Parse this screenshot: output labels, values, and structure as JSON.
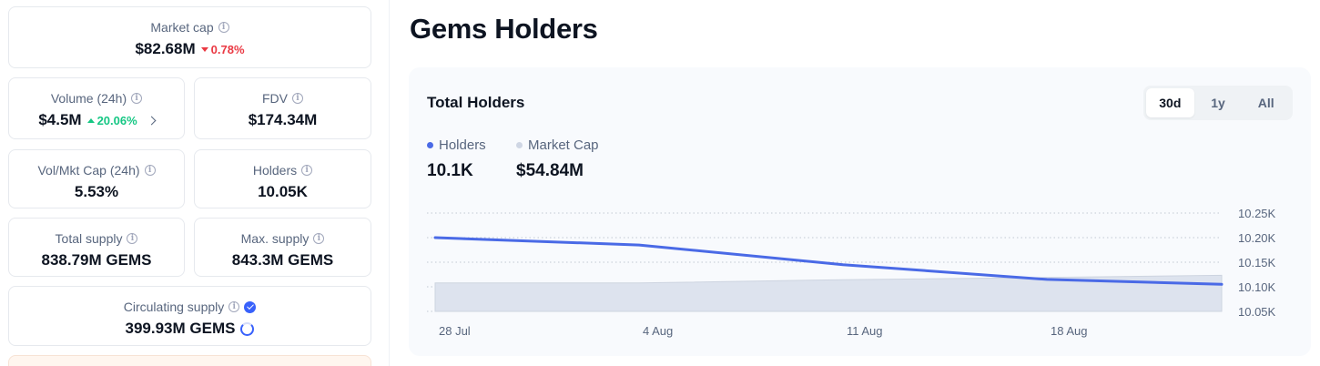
{
  "stats": {
    "market_cap": {
      "label": "Market cap",
      "value": "$82.68M",
      "change": "0.78%",
      "direction": "down"
    },
    "volume": {
      "label": "Volume (24h)",
      "value": "$4.5M",
      "change": "20.06%",
      "direction": "up"
    },
    "fdv": {
      "label": "FDV",
      "value": "$174.34M"
    },
    "vol_mkt_cap": {
      "label": "Vol/Mkt Cap (24h)",
      "value": "5.53%"
    },
    "holders": {
      "label": "Holders",
      "value": "10.05K"
    },
    "total_supply": {
      "label": "Total supply",
      "value": "838.79M GEMS"
    },
    "max_supply": {
      "label": "Max. supply",
      "value": "843.3M GEMS"
    },
    "circulating_supply": {
      "label": "Circulating supply",
      "value": "399.93M GEMS"
    }
  },
  "section": {
    "title": "Gems Holders"
  },
  "panel": {
    "title": "Total Holders",
    "tabs": [
      "30d",
      "1y",
      "All"
    ],
    "active_tab": "30d",
    "legend": [
      {
        "name": "Holders",
        "value": "10.1K",
        "color": "#4a6ae6"
      },
      {
        "name": "Market Cap",
        "value": "$54.84M",
        "color": "#cfd6e4"
      }
    ]
  },
  "colors": {
    "accent": "#3861fb",
    "down": "#ea3943",
    "up": "#16c784",
    "holders_line": "#4a6ae6",
    "market_cap_area": "#dde3ee"
  },
  "icons": [
    "info-icon",
    "caret-down-icon",
    "caret-up-icon",
    "chevron-right-icon",
    "verified-icon",
    "progress-ring-icon"
  ],
  "chart_data": {
    "type": "line",
    "x_tick_labels": [
      "28 Jul",
      "4 Aug",
      "11 Aug",
      "18 Aug"
    ],
    "y_tick_labels": [
      "10.25K",
      "10.20K",
      "10.15K",
      "10.10K",
      "10.05K"
    ],
    "ylim": [
      10050,
      10250
    ],
    "grid": true,
    "series": [
      {
        "name": "Holders",
        "type": "line",
        "x": [
          0,
          7,
          14,
          21,
          27
        ],
        "values": [
          10200,
          10185,
          10145,
          10115,
          10105
        ]
      },
      {
        "name": "Market Cap",
        "type": "area",
        "x": [
          0,
          7,
          14,
          21,
          27
        ],
        "relative_values": [
          0.52,
          0.52,
          0.58,
          0.62,
          0.66
        ]
      }
    ],
    "xlim": [
      0,
      27
    ],
    "tick_x": [
      0,
      7,
      14,
      21
    ]
  }
}
